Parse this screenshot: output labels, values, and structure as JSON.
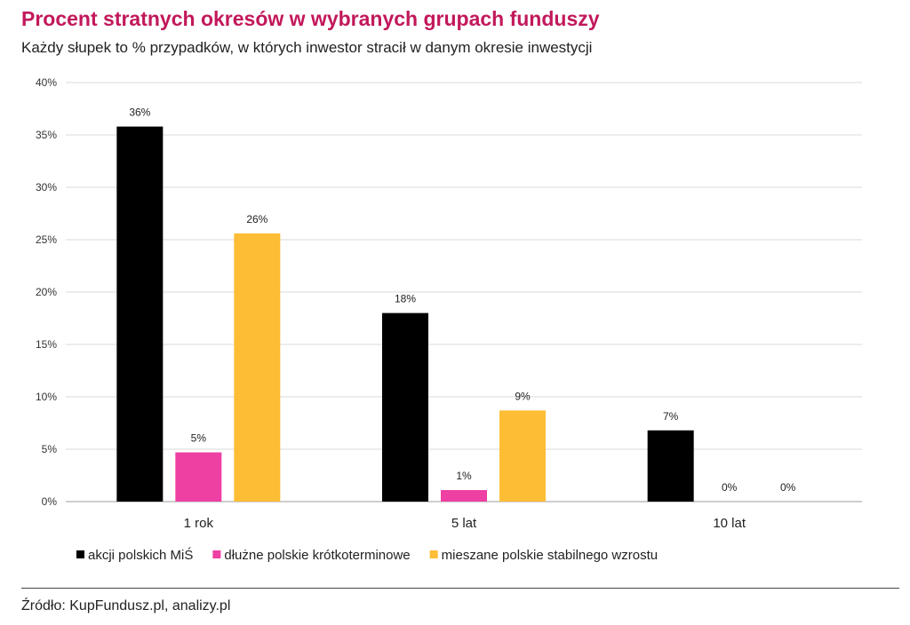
{
  "title": "Procent stratnych okresów w wybranych grupach funduszy",
  "subtitle": "Każdy słupek to % przypadków, w których inwestor stracił w danym okresie inwestycji",
  "source": "Źródło: KupFundusz.pl, analizy.pl",
  "colors": {
    "title": "#c2185b",
    "grid": "#d9d9d9"
  },
  "chart_data": {
    "type": "bar",
    "categories": [
      "1 rok",
      "5 lat",
      "10 lat"
    ],
    "series": [
      {
        "name": "akcji polskich MiŚ",
        "color": "#000000",
        "values": [
          35.8,
          18.0,
          6.8
        ],
        "labels": [
          "36%",
          "18%",
          "7%"
        ]
      },
      {
        "name": "dłużne polskie krótkoterminowe",
        "color": "#ee3fa3",
        "values": [
          4.7,
          1.1,
          0
        ],
        "labels": [
          "5%",
          "1%",
          "0%"
        ]
      },
      {
        "name": "mieszane polskie stabilnego wzrostu",
        "color": "#fdbd35",
        "values": [
          25.6,
          8.7,
          0
        ],
        "labels": [
          "26%",
          "9%",
          "0%"
        ]
      }
    ],
    "yticks": [
      "0%",
      "5%",
      "10%",
      "15%",
      "20%",
      "25%",
      "30%",
      "35%",
      "40%"
    ],
    "ylim": [
      0,
      40
    ],
    "grid": true,
    "legend_position": "bottom"
  }
}
